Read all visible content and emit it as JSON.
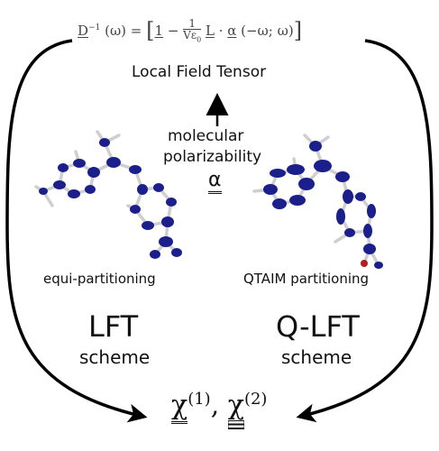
{
  "equation": {
    "lhs": "D",
    "lhs_sup": "−1",
    "lhs_arg": "(ω) = ",
    "bracket_open": "[",
    "one": "1",
    "minus": " − ",
    "frac_num": "1",
    "frac_den": "Vε",
    "frac_den_sub": "0",
    "L": "L",
    "dot": " · ",
    "alpha": "α",
    "alpha_arg": "(−ω; ω)",
    "bracket_close": "]"
  },
  "local_field_tensor": "Local Field Tensor",
  "polarizability": {
    "line1": "molecular",
    "line2": "polarizability",
    "symbol": "α"
  },
  "left_molecule_caption": "equi-partitioning",
  "right_molecule_caption": "QTAIM partitioning",
  "left_scheme": {
    "title": "LFT",
    "subtitle": "scheme"
  },
  "right_scheme": {
    "title": "Q-LFT",
    "subtitle": "scheme"
  },
  "result": {
    "chi": "χ",
    "sup1": "(1)",
    "comma": ", ",
    "sup2": "(2)"
  },
  "colors": {
    "atom": "#1a1f8c",
    "bond": "#c8c8c8",
    "arrow": "#000000"
  }
}
